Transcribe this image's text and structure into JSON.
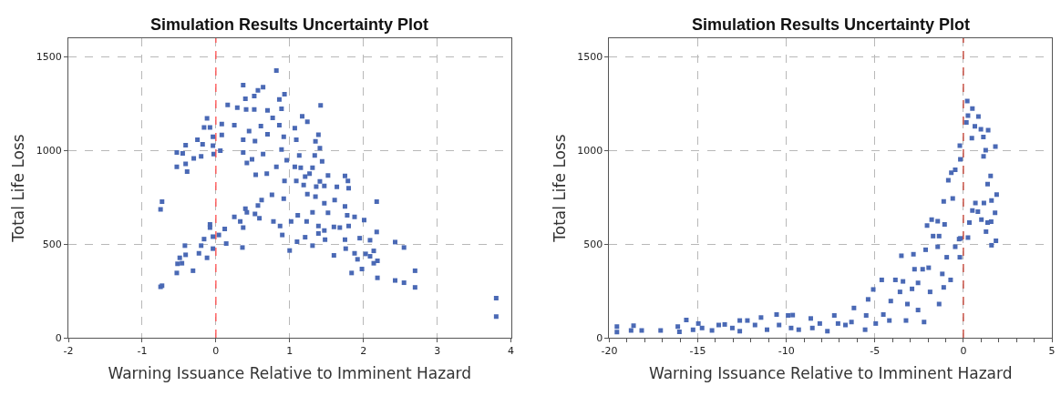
{
  "chart_data": [
    {
      "type": "scatter",
      "title": "Simulation Results Uncertainty Plot",
      "xlabel": "Warning Issuance Relative to Imminent Hazard",
      "ylabel": "Total Life Loss",
      "xlim": [
        -2,
        4
      ],
      "xticks": [
        -2,
        -1,
        0,
        1,
        2,
        3,
        4
      ],
      "ylim": [
        0,
        1600
      ],
      "yticks": [
        0,
        500,
        1000,
        1500
      ],
      "grid": true,
      "marker": "square",
      "ref_lines": [
        {
          "axis": "x",
          "value": 0,
          "color": "#ff4d4d",
          "line_style": "dashed"
        }
      ],
      "series": [
        {
          "color": "#4a69b5",
          "x": [
            0.82,
            0.37,
            0.64,
            0.57,
            0.4,
            0.52,
            0.93,
            0.86,
            1.42,
            0.16,
            0.29,
            0.41,
            0.52,
            0.7,
            0.77,
            0.89,
            1.17,
            1.24,
            -0.12,
            -0.16,
            -0.08,
            0.08,
            0.25,
            0.45,
            0.61,
            0.86,
            1.07,
            1.39,
            -0.04,
            0.08,
            0.37,
            0.53,
            0.7,
            0.92,
            1.09,
            -0.25,
            -0.18,
            -0.41,
            1.35,
            -0.04,
            0.06,
            0.37,
            0.64,
            0.89,
            1.41,
            -0.53,
            -0.45,
            -0.3,
            -0.2,
            -0.03,
            -0.53,
            -0.41,
            -0.39,
            0.42,
            0.49,
            0.96,
            1.13,
            1.34,
            1.44,
            0.82,
            1.07,
            1.15,
            1.31,
            0.54,
            0.69,
            1.27,
            1.21,
            0.93,
            1.09,
            1.41,
            1.52,
            1.75,
            1.79,
            1.36,
            1.47,
            1.64,
            1.8,
            1.19,
            0.76,
            0.92,
            0.62,
            0.57,
            0.4,
            0.42,
            0.53,
            0.25,
            0.33,
            0.37,
            0.59,
            0.78,
            0.87,
            1.02,
            1.11,
            1.24,
            1.35,
            1.47,
            1.52,
            1.61,
            1.75,
            1.78,
            1.88,
            2.01,
            2.18,
            1.31,
            1.23,
            1.39,
            1.47,
            1.6,
            1.68,
            1.8,
            -0.08,
            -0.08,
            0.12,
            0.04,
            -0.04,
            -0.16,
            0.14,
            0.36,
            0.9,
            1.1,
            1.21,
            1.31,
            1.39,
            1.48,
            1.75,
            1.95,
            2.09,
            2.18,
            1.76,
            1.88,
            2.03,
            2.14,
            2.43,
            2.55,
            1.0,
            1.6,
            1.92,
            1.98,
            2.09,
            2.19,
            2.14,
            1.84,
            2.19,
            2.43,
            2.55,
            2.7,
            2.7,
            3.8,
            3.8,
            -0.04,
            -0.2,
            -0.23,
            -0.12,
            -0.41,
            -0.49,
            -0.42,
            -0.52,
            -0.46,
            -0.31,
            -0.53,
            -0.73,
            -0.75,
            -0.73,
            -0.75
          ],
          "values": [
            1427,
            1350,
            1338,
            1322,
            1277,
            1291,
            1301,
            1273,
            1241,
            1244,
            1229,
            1220,
            1220,
            1214,
            1175,
            1223,
            1183,
            1154,
            1172,
            1123,
            1123,
            1142,
            1136,
            1104,
            1131,
            1136,
            1120,
            1084,
            1074,
            1083,
            1058,
            1050,
            1087,
            1074,
            1058,
            1058,
            1034,
            1029,
            1049,
            1026,
            1000,
            990,
            981,
            1006,
            1013,
            990,
            985,
            958,
            969,
            981,
            913,
            929,
            888,
            934,
            953,
            948,
            974,
            974,
            942,
            913,
            913,
            908,
            908,
            871,
            877,
            877,
            861,
            838,
            838,
            835,
            867,
            864,
            838,
            807,
            811,
            806,
            799,
            816,
            764,
            743,
            735,
            706,
            689,
            670,
            662,
            646,
            621,
            589,
            638,
            621,
            597,
            621,
            654,
            767,
            754,
            718,
            667,
            735,
            702,
            654,
            646,
            629,
            727,
            670,
            621,
            597,
            573,
            592,
            589,
            597,
            605,
            589,
            581,
            549,
            540,
            527,
            503,
            482,
            549,
            513,
            537,
            492,
            557,
            524,
            524,
            532,
            521,
            565,
            476,
            451,
            448,
            464,
            511,
            482,
            466,
            440,
            419,
            367,
            435,
            411,
            398,
            346,
            320,
            306,
            294,
            358,
            269,
            212,
            113,
            476,
            492,
            451,
            427,
            443,
            427,
            492,
            395,
            398,
            358,
            346,
            727,
            686,
            278,
            272
          ]
        }
      ]
    },
    {
      "type": "scatter",
      "title": "Simulation Results Uncertainty Plot",
      "xlabel": "Warning Issuance Relative to Imminent Hazard",
      "ylabel": "Total Life Loss",
      "xlim": [
        -20,
        5
      ],
      "xticks": [
        -20,
        {
          "value": -19,
          "label": null
        },
        {
          "value": -18,
          "label": null
        },
        {
          "value": -17,
          "label": null
        },
        {
          "value": -16,
          "label": null
        },
        -15,
        {
          "value": -14,
          "label": null
        },
        {
          "value": -13,
          "label": null
        },
        {
          "value": -12,
          "label": null
        },
        {
          "value": -11,
          "label": null
        },
        -10,
        {
          "value": -9,
          "label": null
        },
        {
          "value": -8,
          "label": null
        },
        {
          "value": -7,
          "label": null
        },
        {
          "value": -6,
          "label": null
        },
        -5,
        {
          "value": -4,
          "label": null
        },
        {
          "value": -3,
          "label": null
        },
        {
          "value": -2,
          "label": null
        },
        {
          "value": -1,
          "label": null
        },
        0,
        {
          "value": 1,
          "label": null
        },
        {
          "value": 2,
          "label": null
        },
        {
          "value": 3,
          "label": null
        },
        {
          "value": 4,
          "label": null
        },
        5
      ],
      "ylim": [
        0,
        1600
      ],
      "yticks": [
        0,
        500,
        1000,
        1500
      ],
      "grid": true,
      "marker": "square",
      "ref_lines": [
        {
          "axis": "x",
          "value": 0,
          "color": "#c0392b",
          "line_style": "dashed"
        }
      ],
      "series": [
        {
          "color": "#4a69b5",
          "x": [
            -19.57,
            -19.57,
            -18.77,
            -18.63,
            -18.17,
            -17.1,
            -16.13,
            -16.04,
            -15.65,
            -15.27,
            -14.97,
            -14.76,
            -14.2,
            -13.82,
            -13.48,
            -13.05,
            -12.63,
            -12.63,
            -12.2,
            -11.77,
            -11.43,
            -11.09,
            -10.55,
            -10.41,
            -9.9,
            -9.64,
            -9.73,
            -9.3,
            -8.62,
            -8.53,
            -8.11,
            -7.68,
            -7.29,
            -7.08,
            -6.66,
            -6.32,
            -6.18,
            -5.55,
            -5.49,
            -5.38,
            -5.09,
            -4.95,
            -4.61,
            -4.52,
            -4.18,
            -4.1,
            -3.84,
            -3.5,
            -3.58,
            -3.41,
            -3.24,
            -3.16,
            -2.82,
            -2.76,
            -2.9,
            -2.56,
            -2.56,
            -2.22,
            -2.3,
            -2.13,
            -2.05,
            -1.96,
            -1.88,
            -1.79,
            -1.45,
            -1.71,
            -1.45,
            -1.37,
            -1.37,
            -1.19,
            -1.11,
            -1.11,
            -1.06,
            -0.94,
            -0.72,
            -0.6,
            -0.85,
            -0.68,
            -0.46,
            -0.46,
            -0.24,
            -0.2,
            -0.17,
            -0.2,
            0.22,
            0.51,
            0.26,
            0.17,
            0.85,
            0.65,
            0.99,
            0.48,
            1.13,
            1.4,
            1.26,
            1.14,
            1.81,
            1.54,
            1.37,
            1.88,
            0.68,
            0.51,
            1.16,
            1.59,
            0.82,
            1.79,
            0.34,
            1.02,
            1.37,
            1.57,
            0.26,
            1.28,
            1.59,
            1.84,
            -0.17
          ],
          "values": [
            60,
            31,
            39,
            64,
            39,
            39,
            60,
            32,
            95,
            43,
            76,
            52,
            39,
            68,
            71,
            52,
            92,
            35,
            92,
            68,
            108,
            43,
            124,
            68,
            119,
            121,
            52,
            43,
            103,
            52,
            76,
            35,
            119,
            76,
            68,
            84,
            159,
            43,
            119,
            205,
            258,
            76,
            309,
            124,
            92,
            196,
            309,
            438,
            245,
            301,
            92,
            180,
            446,
            366,
            261,
            148,
            293,
            84,
            366,
            470,
            599,
            374,
            245,
            631,
            623,
            543,
            486,
            180,
            543,
            341,
            269,
            728,
            605,
            430,
            309,
            744,
            841,
            881,
            897,
            486,
            527,
            430,
            953,
            1026,
            1264,
            1224,
            1187,
            1150,
            1182,
            1130,
            1114,
            1066,
            1072,
            1109,
            1002,
            969,
            1021,
            865,
            821,
            765,
            720,
            680,
            720,
            733,
            673,
            667,
            615,
            631,
            615,
            620,
            535,
            567,
            494,
            518,
            531
          ]
        }
      ]
    }
  ]
}
